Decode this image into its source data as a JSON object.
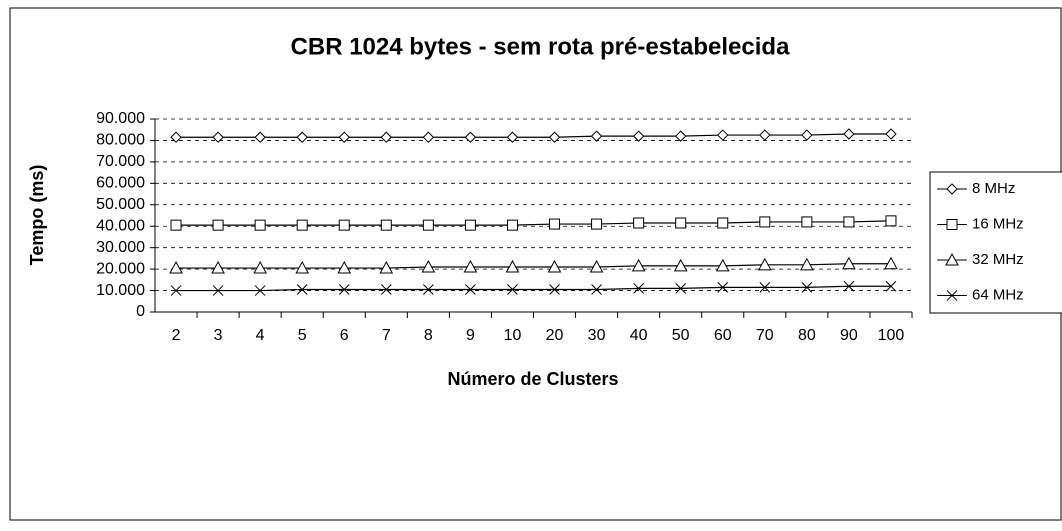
{
  "chart_data": {
    "type": "line",
    "title": "CBR 1024 bytes - sem rota pré-estabelecida",
    "x_label": "Número de Clusters",
    "y_label": "Tempo (ms)",
    "categories": [
      "2",
      "3",
      "4",
      "5",
      "6",
      "7",
      "8",
      "9",
      "10",
      "20",
      "30",
      "40",
      "50",
      "60",
      "70",
      "80",
      "90",
      "100"
    ],
    "series": [
      {
        "name": "8 MHz",
        "color": "#000000",
        "marker": "diamond",
        "values": [
          81500,
          81500,
          81500,
          81500,
          81500,
          81500,
          81500,
          81500,
          81500,
          81500,
          82000,
          82000,
          82000,
          82500,
          82500,
          82500,
          83000,
          83000
        ]
      },
      {
        "name": "16 MHz",
        "color": "#000000",
        "marker": "square",
        "values": [
          40500,
          40500,
          40500,
          40500,
          40500,
          40500,
          40500,
          40500,
          40500,
          41000,
          41000,
          41500,
          41500,
          41500,
          42000,
          42000,
          42000,
          42500
        ]
      },
      {
        "name": "32 MHz",
        "color": "#000000",
        "marker": "triangle",
        "values": [
          20500,
          20500,
          20500,
          20500,
          20500,
          20500,
          21000,
          21000,
          21000,
          21000,
          21000,
          21500,
          21500,
          21500,
          22000,
          22000,
          22500,
          22500
        ]
      },
      {
        "name": "64 MHz",
        "color": "#000000",
        "marker": "x",
        "values": [
          10000,
          10000,
          10000,
          10500,
          10500,
          10500,
          10500,
          10500,
          10500,
          10500,
          10500,
          11000,
          11000,
          11500,
          11500,
          11500,
          12000,
          12000
        ]
      }
    ],
    "ylim": [
      0,
      90000
    ],
    "yticks": [
      0,
      {
        "value": 10000,
        "label": "10.000"
      },
      {
        "value": 20000,
        "label": "20.000"
      },
      {
        "value": 30000,
        "label": "30.000"
      },
      {
        "value": 40000,
        "label": "40.000"
      },
      {
        "value": 50000,
        "label": "50.000"
      },
      {
        "value": 60000,
        "label": "60.000"
      },
      {
        "value": 70000,
        "label": "70.000"
      },
      {
        "value": 80000,
        "label": "80.000"
      },
      {
        "value": 90000,
        "label": "90.000"
      }
    ],
    "grid": true,
    "legend": "right"
  }
}
